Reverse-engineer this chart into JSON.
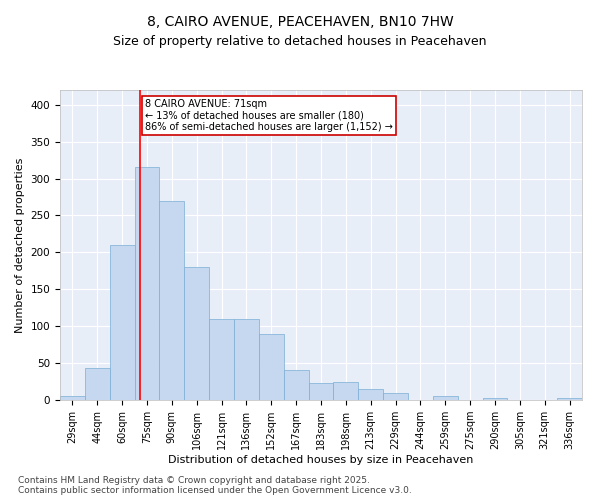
{
  "title1": "8, CAIRO AVENUE, PEACEHAVEN, BN10 7HW",
  "title2": "Size of property relative to detached houses in Peacehaven",
  "xlabel": "Distribution of detached houses by size in Peacehaven",
  "ylabel": "Number of detached properties",
  "categories": [
    "29sqm",
    "44sqm",
    "60sqm",
    "75sqm",
    "90sqm",
    "106sqm",
    "121sqm",
    "136sqm",
    "152sqm",
    "167sqm",
    "183sqm",
    "198sqm",
    "213sqm",
    "229sqm",
    "244sqm",
    "259sqm",
    "275sqm",
    "290sqm",
    "305sqm",
    "321sqm",
    "336sqm"
  ],
  "values": [
    5,
    44,
    210,
    315,
    270,
    180,
    110,
    110,
    90,
    40,
    23,
    25,
    15,
    10,
    0,
    6,
    0,
    3,
    0,
    0,
    3
  ],
  "bar_color": "#c5d8f0",
  "bar_edge_color": "#7aadd4",
  "background_color": "#e8eef8",
  "grid_color": "#ffffff",
  "annotation_text": "8 CAIRO AVENUE: 71sqm\n← 13% of detached houses are smaller (180)\n86% of semi-detached houses are larger (1,152) →",
  "annotation_box_color": "#ffffff",
  "annotation_box_edge": "#cc0000",
  "footer1": "Contains HM Land Registry data © Crown copyright and database right 2025.",
  "footer2": "Contains public sector information licensed under the Open Government Licence v3.0.",
  "ylim": [
    0,
    420
  ],
  "title1_fontsize": 10,
  "title2_fontsize": 9,
  "tick_fontsize": 7,
  "ylabel_fontsize": 8,
  "xlabel_fontsize": 8,
  "footer_fontsize": 6.5
}
